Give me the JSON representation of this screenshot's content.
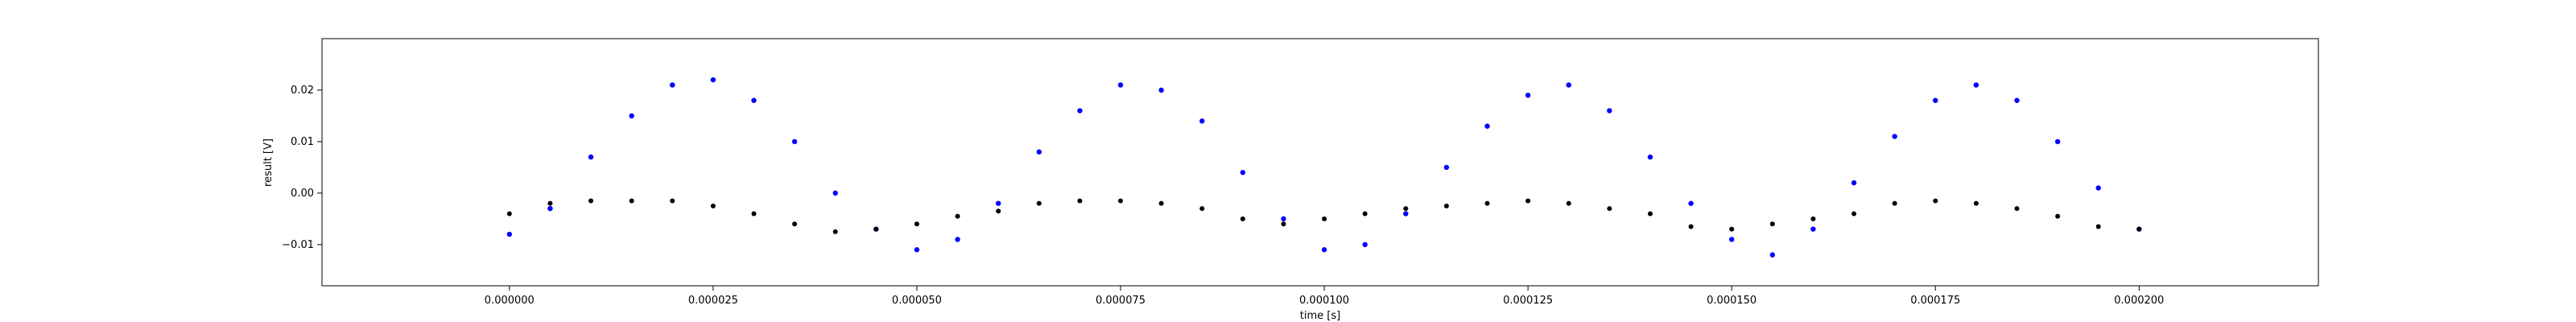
{
  "chart_data": {
    "type": "scatter",
    "title": "",
    "xlabel": "time [s]",
    "ylabel": "result [V]",
    "xlim": [
      -2.3e-05,
      0.000222
    ],
    "ylim": [
      -0.018,
      0.03
    ],
    "x_ticks": [
      0.0,
      2.5e-05,
      5e-05,
      7.5e-05,
      0.0001,
      0.000125,
      0.00015,
      0.000175,
      0.0002
    ],
    "x_tick_labels": [
      "0.000000",
      "0.000025",
      "0.000050",
      "0.000075",
      "0.000100",
      "0.000125",
      "0.000150",
      "0.000175",
      "0.000200"
    ],
    "y_ticks": [
      -0.01,
      0.0,
      0.01,
      0.02
    ],
    "y_tick_labels": [
      "−0.01",
      "0.00",
      "0.01",
      "0.02"
    ],
    "grid": false,
    "legend": "none",
    "series": [
      {
        "color": "#0000ff",
        "marker": "dot",
        "x": [
          0.0,
          5e-06,
          1e-05,
          1.5e-05,
          2e-05,
          2.5e-05,
          3e-05,
          3.5e-05,
          4e-05,
          4.5e-05,
          5e-05,
          5.5e-05,
          6e-05,
          6.5e-05,
          7e-05,
          7.5e-05,
          8e-05,
          8.5e-05,
          9e-05,
          9.5e-05,
          0.0001,
          0.000105,
          0.00011,
          0.000115,
          0.00012,
          0.000125,
          0.00013,
          0.000135,
          0.00014,
          0.000145,
          0.00015,
          0.000155,
          0.00016,
          0.000165,
          0.00017,
          0.000175,
          0.00018,
          0.000185,
          0.00019,
          0.000195,
          0.0002
        ],
        "y": [
          -0.008,
          -0.003,
          0.007,
          0.015,
          0.021,
          0.022,
          0.018,
          0.01,
          0.0,
          -0.007,
          -0.011,
          -0.009,
          -0.002,
          0.008,
          0.016,
          0.021,
          0.02,
          0.014,
          0.004,
          -0.005,
          -0.011,
          -0.01,
          -0.004,
          0.005,
          0.013,
          0.019,
          0.021,
          0.016,
          0.007,
          -0.002,
          -0.009,
          -0.012,
          -0.007,
          0.002,
          0.011,
          0.018,
          0.021,
          0.018,
          0.01,
          0.001,
          -0.007
        ]
      },
      {
        "color": "#000000",
        "marker": "dot",
        "x": [
          0.0,
          5e-06,
          1e-05,
          1.5e-05,
          2e-05,
          2.5e-05,
          3e-05,
          3.5e-05,
          4e-05,
          4.5e-05,
          5e-05,
          5.5e-05,
          6e-05,
          6.5e-05,
          7e-05,
          7.5e-05,
          8e-05,
          8.5e-05,
          9e-05,
          9.5e-05,
          0.0001,
          0.000105,
          0.00011,
          0.000115,
          0.00012,
          0.000125,
          0.00013,
          0.000135,
          0.00014,
          0.000145,
          0.00015,
          0.000155,
          0.00016,
          0.000165,
          0.00017,
          0.000175,
          0.00018,
          0.000185,
          0.00019,
          0.000195,
          0.0002
        ],
        "y": [
          -0.004,
          -0.002,
          -0.0015,
          -0.0015,
          -0.0015,
          -0.0025,
          -0.004,
          -0.006,
          -0.0075,
          -0.007,
          -0.006,
          -0.0045,
          -0.0035,
          -0.002,
          -0.0015,
          -0.0015,
          -0.002,
          -0.003,
          -0.005,
          -0.006,
          -0.005,
          -0.004,
          -0.003,
          -0.0025,
          -0.002,
          -0.0015,
          -0.002,
          -0.003,
          -0.004,
          -0.0065,
          -0.007,
          -0.006,
          -0.005,
          -0.004,
          -0.002,
          -0.0015,
          -0.002,
          -0.003,
          -0.0045,
          -0.0065,
          -0.007
        ]
      }
    ]
  }
}
